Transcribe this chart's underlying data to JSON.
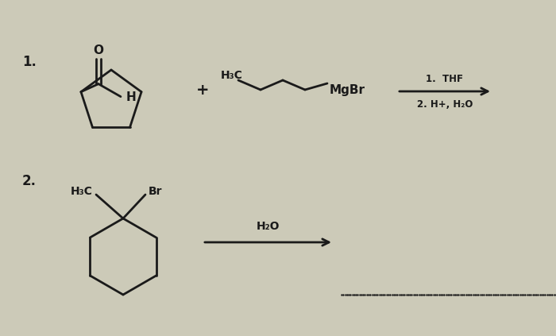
{
  "bg_color": "#cccab8",
  "line_color": "#1a1a1a",
  "label1": "1.",
  "label2": "2.",
  "plus_sign": "+",
  "reagent1_top": "1.  THF",
  "reagent1_bot": "2. H+, H₂O",
  "reagent2_top": "H₂O",
  "mgbr_label": "MgBr",
  "h3c_label1": "H₃C",
  "h3c_label2": "H₃C",
  "br_label": "Br",
  "h_label": "H",
  "o_label": "O"
}
